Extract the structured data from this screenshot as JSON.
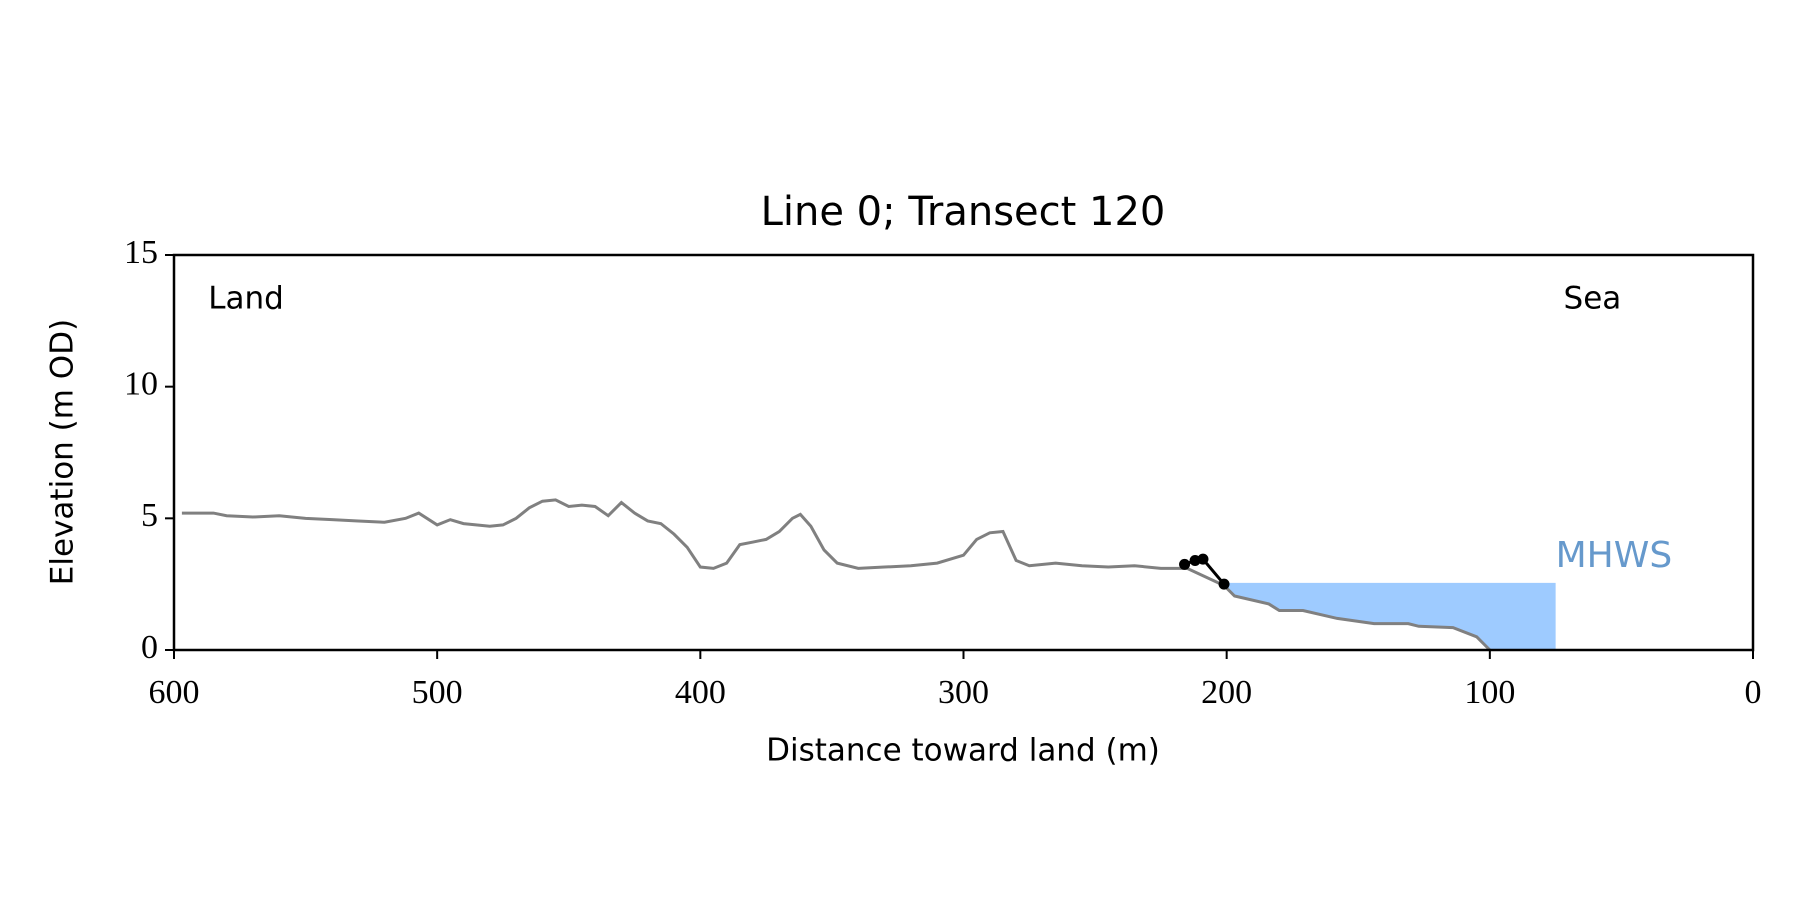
{
  "chart_data": {
    "type": "line",
    "title": "Line 0; Transect 120",
    "xlabel": "Distance toward land (m)",
    "ylabel": "Elevation (m OD)",
    "xlim": [
      600,
      0
    ],
    "xticks": [
      600,
      500,
      400,
      300,
      200,
      100,
      0
    ],
    "ylim": [
      0,
      15
    ],
    "yticks": [
      0,
      5,
      10,
      15
    ],
    "annotations": [
      {
        "text": "Land",
        "x": 587,
        "y": 13.3
      },
      {
        "text": "Sea",
        "x": 72,
        "y": 13.3
      }
    ],
    "series": [
      {
        "color": "#808080",
        "markers": false,
        "x": [
          597,
          590,
          585,
          580,
          570,
          560,
          550,
          540,
          530,
          520,
          512,
          507,
          500,
          495,
          490,
          480,
          475,
          470,
          465,
          460,
          455,
          450,
          445,
          440,
          435,
          430,
          425,
          420,
          415,
          410,
          405,
          400,
          395,
          390,
          385,
          380,
          375,
          370,
          365,
          362,
          358,
          353,
          348,
          340,
          330,
          320,
          310,
          300,
          295,
          290,
          285,
          280,
          275,
          265,
          255,
          245,
          235,
          225,
          215,
          201,
          197,
          184,
          180,
          171,
          158,
          144,
          131,
          127,
          114,
          105,
          100
        ],
        "values": [
          5.2,
          5.2,
          5.2,
          5.1,
          5.05,
          5.1,
          5.0,
          4.95,
          4.9,
          4.85,
          5.0,
          5.2,
          4.75,
          4.95,
          4.8,
          4.7,
          4.75,
          5.0,
          5.4,
          5.65,
          5.7,
          5.45,
          5.5,
          5.45,
          5.1,
          5.6,
          5.2,
          4.9,
          4.8,
          4.4,
          3.9,
          3.15,
          3.1,
          3.3,
          4.0,
          4.1,
          4.2,
          4.5,
          5.0,
          5.15,
          4.7,
          3.8,
          3.3,
          3.1,
          3.15,
          3.2,
          3.3,
          3.6,
          4.2,
          4.45,
          4.5,
          3.4,
          3.2,
          3.3,
          3.2,
          3.15,
          3.2,
          3.1,
          3.1,
          2.45,
          2.05,
          1.75,
          1.5,
          1.5,
          1.2,
          1.0,
          1.0,
          0.9,
          0.85,
          0.5,
          0.0
        ]
      },
      {
        "color": "#000000",
        "markers": true,
        "x": [
          216,
          212,
          209,
          201
        ],
        "values": [
          3.25,
          3.4,
          3.45,
          2.5
        ]
      }
    ],
    "mhws": {
      "label": "MHWS",
      "level": 2.55,
      "xrange": [
        201,
        75
      ],
      "color": "#9ecbff",
      "label_color": "#6699cc"
    }
  }
}
